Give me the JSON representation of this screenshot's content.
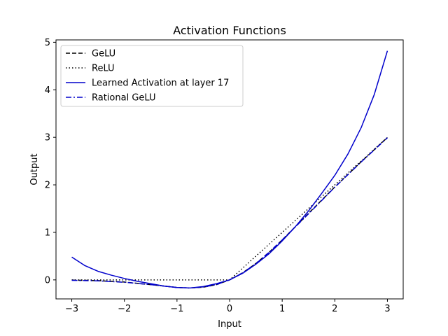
{
  "chart_data": {
    "type": "line",
    "title": "Activation Functions",
    "xlabel": "Input",
    "ylabel": "Output",
    "xlim": [
      -3.3,
      3.3
    ],
    "ylim": [
      -0.4,
      5.05
    ],
    "xticks": [
      -3,
      -2,
      -1,
      0,
      1,
      2,
      3
    ],
    "yticks": [
      0,
      1,
      2,
      3,
      4,
      5
    ],
    "xtick_labels": [
      "−3",
      "−2",
      "−1",
      "0",
      "1",
      "2",
      "3"
    ],
    "ytick_labels": [
      "0",
      "1",
      "2",
      "3",
      "4",
      "5"
    ],
    "grid": false,
    "legend_position": "top-left",
    "series": [
      {
        "name": "GeLU",
        "color": "#000000",
        "style": "dashed",
        "x": [
          -3.0,
          -2.5,
          -2.0,
          -1.5,
          -1.0,
          -0.75,
          -0.5,
          -0.25,
          0.0,
          0.25,
          0.5,
          0.75,
          1.0,
          1.5,
          2.0,
          2.5,
          3.0
        ],
        "y": [
          -0.004,
          -0.016,
          -0.045,
          -0.1,
          -0.159,
          -0.17,
          -0.154,
          -0.1,
          0.0,
          0.15,
          0.346,
          0.58,
          0.841,
          1.4,
          1.955,
          2.484,
          2.996
        ]
      },
      {
        "name": "ReLU",
        "color": "#000000",
        "style": "dotted",
        "x": [
          -3.0,
          0.0,
          3.0
        ],
        "y": [
          0.0,
          0.0,
          3.0
        ]
      },
      {
        "name": "Learned Activation at layer 17",
        "color": "#0000cc",
        "style": "solid",
        "x": [
          -3.0,
          -2.75,
          -2.5,
          -2.25,
          -2.0,
          -1.75,
          -1.5,
          -1.25,
          -1.0,
          -0.75,
          -0.5,
          -0.25,
          0.0,
          0.25,
          0.5,
          0.75,
          1.0,
          1.25,
          1.5,
          1.75,
          2.0,
          2.25,
          2.5,
          2.75,
          3.0
        ],
        "y": [
          0.48,
          0.3,
          0.18,
          0.1,
          0.03,
          -0.03,
          -0.08,
          -0.13,
          -0.16,
          -0.17,
          -0.14,
          -0.08,
          0.0,
          0.14,
          0.33,
          0.55,
          0.82,
          1.12,
          1.45,
          1.82,
          2.2,
          2.65,
          3.2,
          3.9,
          4.82
        ]
      },
      {
        "name": "Rational GeLU",
        "color": "#0000cc",
        "style": "dashdot",
        "x": [
          -3.0,
          -2.5,
          -2.0,
          -1.5,
          -1.0,
          -0.75,
          -0.5,
          -0.25,
          0.0,
          0.25,
          0.5,
          0.75,
          1.0,
          1.5,
          2.0,
          2.5,
          3.0
        ],
        "y": [
          -0.01,
          -0.02,
          -0.05,
          -0.1,
          -0.16,
          -0.17,
          -0.15,
          -0.1,
          0.0,
          0.15,
          0.34,
          0.58,
          0.84,
          1.39,
          1.95,
          2.48,
          2.99
        ]
      }
    ]
  }
}
